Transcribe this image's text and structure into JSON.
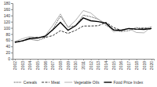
{
  "chart_data": {
    "type": "line",
    "categories": [
      "2002",
      "2003",
      "2004",
      "2005",
      "2006",
      "2007",
      "2008",
      "2009",
      "2010",
      "2011",
      "2012",
      "2013",
      "2014",
      "2015",
      "2016",
      "2017",
      "2018",
      "2019",
      "2020"
    ],
    "series": [
      {
        "name": "Cereals",
        "color": "#000000",
        "line_style": "dotted",
        "values": [
          55,
          58,
          63,
          59,
          68,
          96,
          138,
          103,
          107,
          141,
          136,
          128,
          108,
          94,
          88,
          91,
          101,
          97,
          103
        ]
      },
      {
        "name": "Meat",
        "color": "#000000",
        "line_style": "dashed",
        "values": [
          54,
          58,
          67,
          70,
          69,
          75,
          91,
          82,
          92,
          106,
          106,
          107,
          118,
          101,
          92,
          98,
          95,
          100,
          95
        ]
      },
      {
        "name": "Vegetable Oils",
        "color": "#9e9e9e",
        "line_style": "solid",
        "values": [
          56,
          65,
          72,
          68,
          75,
          108,
          145,
          101,
          124,
          156,
          148,
          127,
          114,
          87,
          94,
          98,
          85,
          84,
          104
        ]
      },
      {
        "name": "Food Price Index",
        "color": "#000000",
        "line_style": "solid",
        "values": [
          53,
          58,
          66,
          67,
          73,
          94,
          118,
          92,
          107,
          132,
          123,
          120,
          115,
          93,
          92,
          98,
          96,
          95,
          98
        ]
      }
    ],
    "ylim": [
      0,
      180
    ],
    "yticks": [
      0,
      20,
      40,
      60,
      80,
      100,
      120,
      140,
      160,
      180
    ],
    "grid": false,
    "legend": "bottom"
  }
}
